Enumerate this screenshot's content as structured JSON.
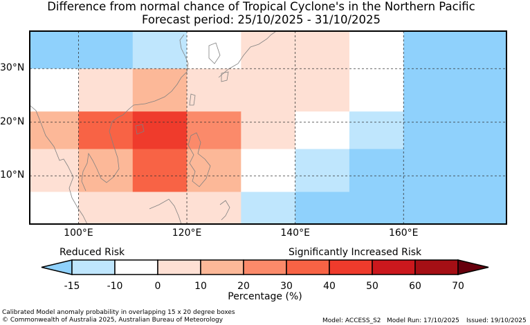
{
  "title_line1": "Difference from normal chance of Tropical Cyclone's in the Northern Pacific",
  "title_line2": "Forecast period: 25/10/2025 - 31/10/2025",
  "map": {
    "lon_range": [
      91,
      179
    ],
    "lat_range": [
      1,
      37
    ],
    "lat_labels": [
      "30°N",
      "20°N",
      "10°N"
    ],
    "lat_values": [
      30,
      20,
      10
    ],
    "lon_labels": [
      "100°E",
      "120°E",
      "140°E",
      "160°E"
    ],
    "lon_values": [
      100,
      120,
      140,
      160
    ],
    "cells": [
      {
        "lon0": 91,
        "lon1": 110,
        "lat0": 30,
        "lat1": 37,
        "cls": "c-10"
      },
      {
        "lon0": 110,
        "lon1": 120,
        "lat0": 30,
        "lat1": 37,
        "cls": "c-15"
      },
      {
        "lon0": 120,
        "lon1": 130,
        "lat0": 30,
        "lat1": 37,
        "cls": "c0"
      },
      {
        "lon0": 130,
        "lon1": 150,
        "lat0": 30,
        "lat1": 37,
        "cls": "c10"
      },
      {
        "lon0": 150,
        "lon1": 160,
        "lat0": 30,
        "lat1": 37,
        "cls": "c0"
      },
      {
        "lon0": 160,
        "lon1": 179,
        "lat0": 30,
        "lat1": 37,
        "cls": "c-10"
      },
      {
        "lon0": 91,
        "lon1": 100,
        "lat0": 22,
        "lat1": 30,
        "cls": "c0"
      },
      {
        "lon0": 100,
        "lon1": 110,
        "lat0": 22,
        "lat1": 30,
        "cls": "c10"
      },
      {
        "lon0": 110,
        "lon1": 120,
        "lat0": 22,
        "lat1": 30,
        "cls": "c20"
      },
      {
        "lon0": 120,
        "lon1": 150,
        "lat0": 22,
        "lat1": 30,
        "cls": "c10"
      },
      {
        "lon0": 150,
        "lon1": 160,
        "lat0": 22,
        "lat1": 30,
        "cls": "c0"
      },
      {
        "lon0": 160,
        "lon1": 179,
        "lat0": 22,
        "lat1": 30,
        "cls": "c-10"
      },
      {
        "lon0": 91,
        "lon1": 100,
        "lat0": 15,
        "lat1": 22,
        "cls": "c20"
      },
      {
        "lon0": 100,
        "lon1": 110,
        "lat0": 15,
        "lat1": 22,
        "cls": "c40"
      },
      {
        "lon0": 110,
        "lon1": 120,
        "lat0": 15,
        "lat1": 22,
        "cls": "c50"
      },
      {
        "lon0": 120,
        "lon1": 130,
        "lat0": 15,
        "lat1": 22,
        "cls": "c30"
      },
      {
        "lon0": 130,
        "lon1": 140,
        "lat0": 15,
        "lat1": 22,
        "cls": "c10"
      },
      {
        "lon0": 140,
        "lon1": 150,
        "lat0": 15,
        "lat1": 22,
        "cls": "c0"
      },
      {
        "lon0": 150,
        "lon1": 160,
        "lat0": 15,
        "lat1": 22,
        "cls": "c-15"
      },
      {
        "lon0": 160,
        "lon1": 179,
        "lat0": 15,
        "lat1": 22,
        "cls": "c-10"
      },
      {
        "lon0": 91,
        "lon1": 100,
        "lat0": 7,
        "lat1": 15,
        "cls": "c10"
      },
      {
        "lon0": 100,
        "lon1": 110,
        "lat0": 7,
        "lat1": 15,
        "cls": "c20"
      },
      {
        "lon0": 110,
        "lon1": 120,
        "lat0": 7,
        "lat1": 15,
        "cls": "c40"
      },
      {
        "lon0": 120,
        "lon1": 130,
        "lat0": 7,
        "lat1": 15,
        "cls": "c20"
      },
      {
        "lon0": 130,
        "lon1": 140,
        "lat0": 7,
        "lat1": 15,
        "cls": "c0"
      },
      {
        "lon0": 140,
        "lon1": 150,
        "lat0": 7,
        "lat1": 15,
        "cls": "c-15"
      },
      {
        "lon0": 150,
        "lon1": 179,
        "lat0": 7,
        "lat1": 15,
        "cls": "c-10"
      },
      {
        "lon0": 91,
        "lon1": 100,
        "lat0": 1,
        "lat1": 7,
        "cls": "c0"
      },
      {
        "lon0": 100,
        "lon1": 130,
        "lat0": 1,
        "lat1": 7,
        "cls": "c10"
      },
      {
        "lon0": 130,
        "lon1": 140,
        "lat0": 1,
        "lat1": 7,
        "cls": "c-15"
      },
      {
        "lon0": 140,
        "lon1": 179,
        "lat0": 1,
        "lat1": 7,
        "cls": "c-10"
      }
    ]
  },
  "colorbar": {
    "left_caption": "Reduced Risk",
    "right_caption": "Significantly Increased Risk",
    "ticks": [
      "-15",
      "-10",
      "0",
      "10",
      "20",
      "30",
      "40",
      "50",
      "60",
      "70"
    ],
    "colors": [
      "#8fd1fc",
      "#bfe6fd",
      "#ffffff",
      "#fee0d4",
      "#fcb898",
      "#fb8a6a",
      "#f86345",
      "#ef3b2c",
      "#cb181d",
      "#a50f15",
      "#67000d"
    ],
    "label": "Percentage (%)"
  },
  "footer": {
    "method": "Calibrated Model anomaly probability in overlapping 15 x 20 degree boxes",
    "copyright": "© Commonwealth of Australia 2025, Australian Bureau of Meteorology",
    "model": "Model: ACCESS_S2",
    "model_run": "Model Run: 17/10/2025",
    "issued": "Issued: 19/10/2025"
  }
}
